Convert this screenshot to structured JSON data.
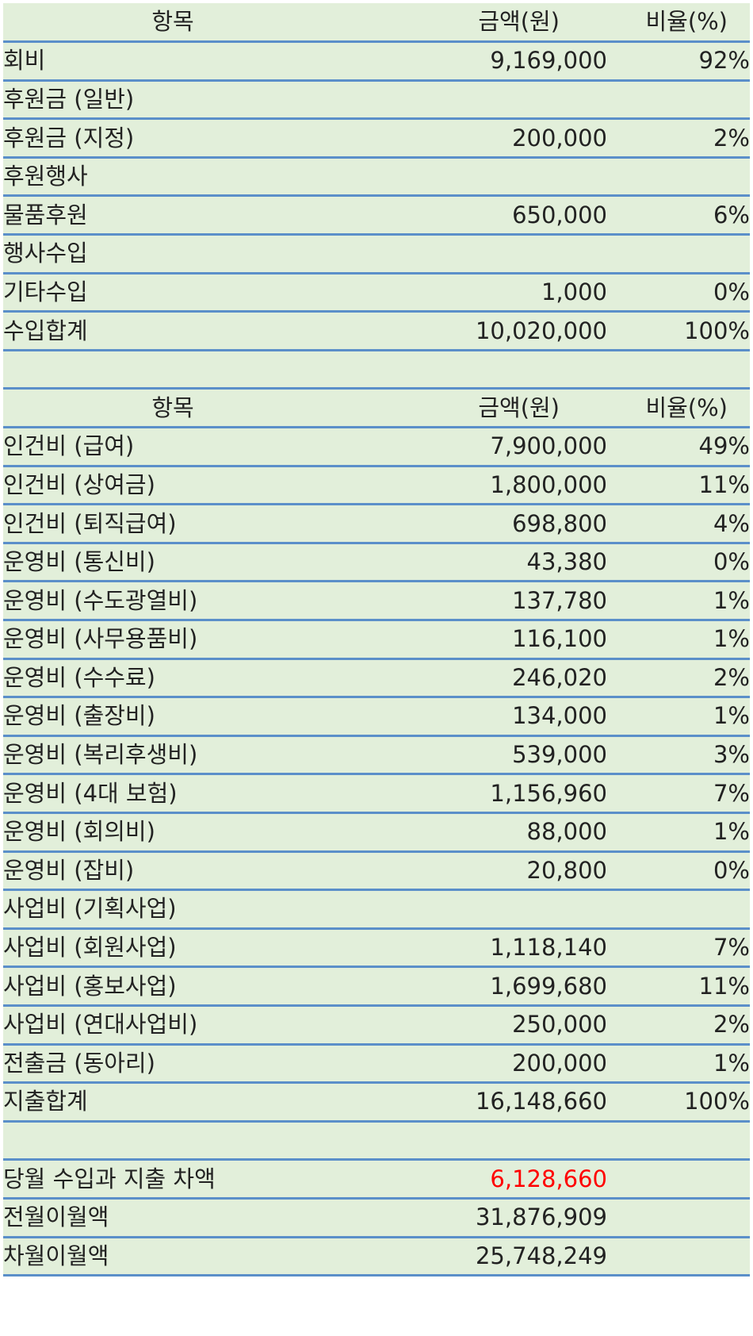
{
  "colors": {
    "row_background": "#e2efda",
    "row_border": "#5b8fc9",
    "text": "#222222",
    "negative_text": "#ff0000"
  },
  "income": {
    "header": {
      "label": "항목",
      "amount": "금액(원)",
      "ratio": "비율(%)"
    },
    "rows": [
      {
        "label": "회비",
        "amount": "9,169,000",
        "ratio": "92%"
      },
      {
        "label": "후원금 (일반)",
        "amount": "",
        "ratio": ""
      },
      {
        "label": "후원금 (지정)",
        "amount": "200,000",
        "ratio": "2%"
      },
      {
        "label": "후원행사",
        "amount": "",
        "ratio": ""
      },
      {
        "label": "물품후원",
        "amount": "650,000",
        "ratio": "6%"
      },
      {
        "label": "행사수입",
        "amount": "",
        "ratio": ""
      },
      {
        "label": "기타수입",
        "amount": "1,000",
        "ratio": "0%"
      }
    ],
    "total": {
      "label": "수입합계",
      "amount": "10,020,000",
      "ratio": "100%"
    }
  },
  "expense": {
    "header": {
      "label": "항목",
      "amount": "금액(원)",
      "ratio": "비율(%)"
    },
    "rows": [
      {
        "label": "인건비 (급여)",
        "amount": "7,900,000",
        "ratio": "49%"
      },
      {
        "label": "인건비 (상여금)",
        "amount": "1,800,000",
        "ratio": "11%"
      },
      {
        "label": "인건비 (퇴직급여)",
        "amount": "698,800",
        "ratio": "4%"
      },
      {
        "label": "운영비 (통신비)",
        "amount": "43,380",
        "ratio": "0%"
      },
      {
        "label": "운영비 (수도광열비)",
        "amount": "137,780",
        "ratio": "1%"
      },
      {
        "label": "운영비 (사무용품비)",
        "amount": "116,100",
        "ratio": "1%"
      },
      {
        "label": "운영비 (수수료)",
        "amount": "246,020",
        "ratio": "2%"
      },
      {
        "label": "운영비 (출장비)",
        "amount": "134,000",
        "ratio": "1%"
      },
      {
        "label": "운영비 (복리후생비)",
        "amount": "539,000",
        "ratio": "3%"
      },
      {
        "label": "운영비 (4대 보험)",
        "amount": "1,156,960",
        "ratio": "7%"
      },
      {
        "label": "운영비 (회의비)",
        "amount": "88,000",
        "ratio": "1%"
      },
      {
        "label": "운영비 (잡비)",
        "amount": "20,800",
        "ratio": "0%"
      },
      {
        "label": "사업비 (기획사업)",
        "amount": "",
        "ratio": ""
      },
      {
        "label": "사업비 (회원사업)",
        "amount": "1,118,140",
        "ratio": "7%"
      },
      {
        "label": "사업비 (홍보사업)",
        "amount": "1,699,680",
        "ratio": "11%"
      },
      {
        "label": "사업비 (연대사업비)",
        "amount": "250,000",
        "ratio": "2%"
      },
      {
        "label": "전출금 (동아리)",
        "amount": "200,000",
        "ratio": "1%"
      }
    ],
    "total": {
      "label": "지출합계",
      "amount": "16,148,660",
      "ratio": "100%"
    }
  },
  "summary": {
    "rows": [
      {
        "label": "당월 수입과 지출 차액",
        "amount": "6,128,660",
        "negative": true
      },
      {
        "label": "전월이월액",
        "amount": "31,876,909",
        "negative": false
      },
      {
        "label": "차월이월액",
        "amount": "25,748,249",
        "negative": false
      }
    ]
  }
}
